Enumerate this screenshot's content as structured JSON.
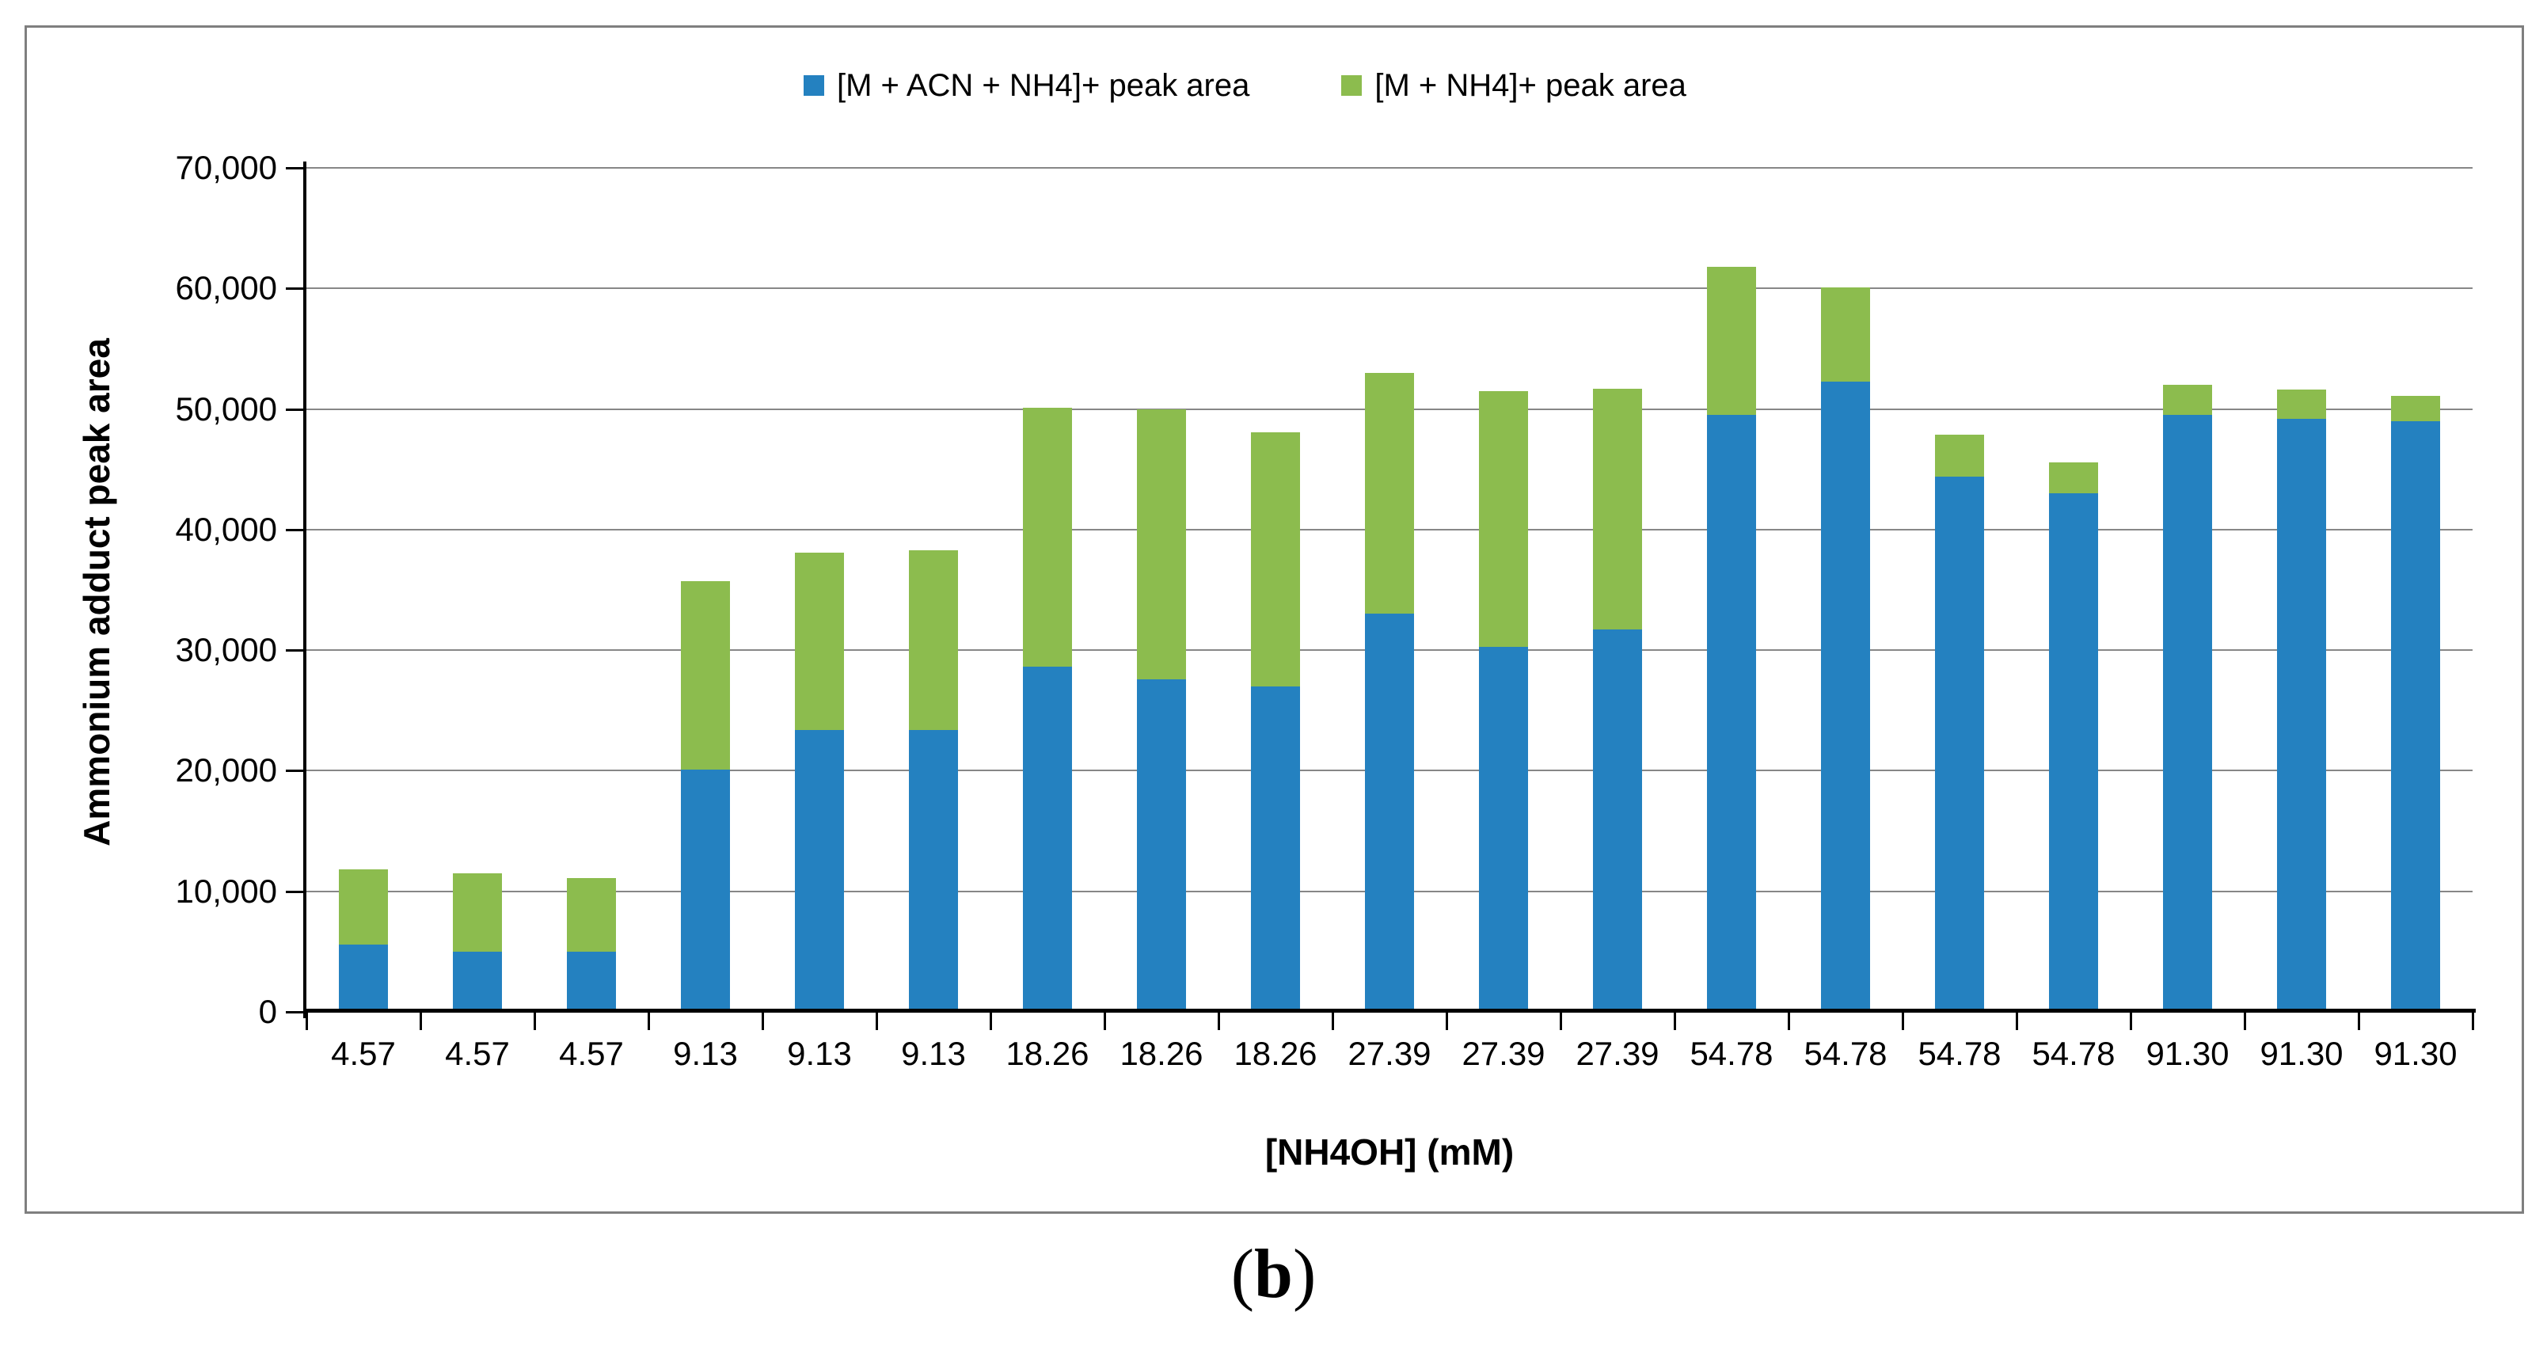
{
  "figure": {
    "caption_open": "(",
    "caption_letter": "b",
    "caption_close": ")"
  },
  "axes": {
    "y_title": "Ammonium adduct peak area",
    "x_title": "[NH4OH] (mM)",
    "y_tick_labels": [
      "0",
      "10,000",
      "20,000",
      "30,000",
      "40,000",
      "50,000",
      "60,000",
      "70,000"
    ]
  },
  "colors": {
    "series_blue": "#2481C0",
    "series_green": "#8CBC4E",
    "gridline": "#878787",
    "axis": "#000000",
    "panel_border": "#7F7F7F"
  },
  "chart_data": {
    "type": "bar",
    "stacked": true,
    "title": "",
    "xlabel": "[NH4OH] (mM)",
    "ylabel": "Ammonium adduct peak area",
    "ylim": [
      0,
      70000
    ],
    "ytick_step": 10000,
    "grid": true,
    "legend_position": "top-center",
    "categories": [
      "4.57",
      "4.57",
      "4.57",
      "9.13",
      "9.13",
      "9.13",
      "18.26",
      "18.26",
      "18.26",
      "27.39",
      "27.39",
      "27.39",
      "54.78",
      "54.78",
      "54.78",
      "54.78",
      "91.30",
      "91.30",
      "91.30"
    ],
    "series": [
      {
        "name": "[M + ACN + NH4]+ peak area",
        "color": "#2481C0",
        "values": [
          5600,
          5000,
          5000,
          20100,
          23400,
          23400,
          28600,
          27600,
          27000,
          33000,
          30300,
          31700,
          49500,
          52300,
          44400,
          43000,
          49500,
          49200,
          49000
        ]
      },
      {
        "name": "[M + NH4]+ peak area",
        "color": "#8CBC4E",
        "values": [
          6200,
          6500,
          6100,
          15600,
          14700,
          14900,
          21500,
          22400,
          21100,
          20000,
          21200,
          20000,
          12300,
          7800,
          3500,
          2600,
          2500,
          2400,
          2100
        ]
      }
    ]
  }
}
